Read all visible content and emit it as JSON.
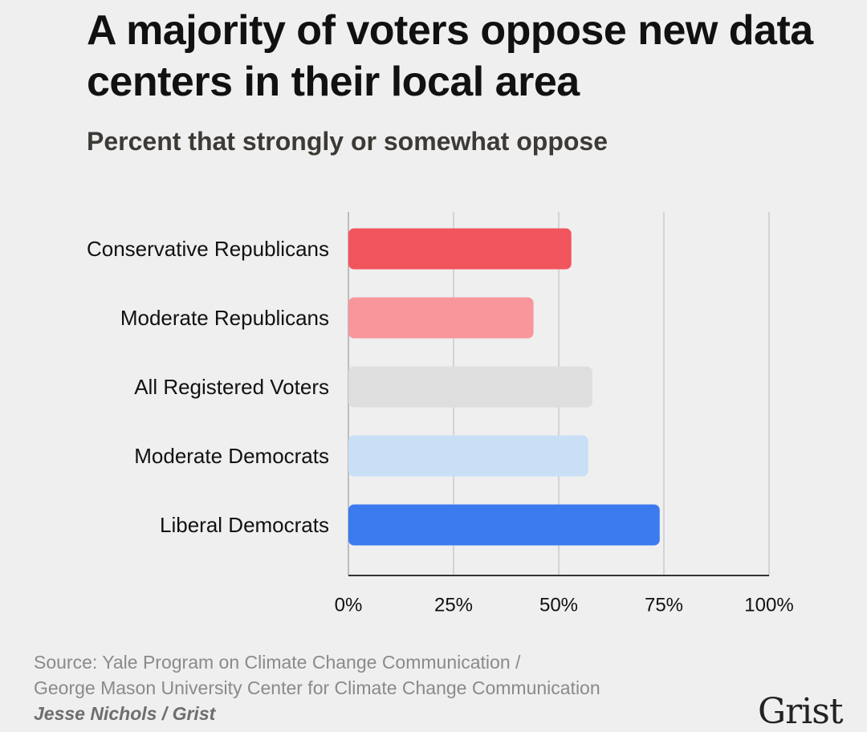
{
  "chart_data": {
    "type": "bar",
    "orientation": "horizontal",
    "title": "A majority of voters oppose new data centers in their local area",
    "subtitle": "Percent that strongly or somewhat oppose",
    "categories": [
      "Conservative Republicans",
      "Moderate Republicans",
      "All Registered Voters",
      "Moderate Democrats",
      "Liberal Democrats"
    ],
    "values": [
      53,
      44,
      58,
      57,
      74
    ],
    "colors": [
      "#f2545e",
      "#f8969c",
      "#dedede",
      "#c8dff6",
      "#3b7aef"
    ],
    "xlim": [
      0,
      100
    ],
    "x_ticks": [
      0,
      25,
      50,
      75,
      100
    ],
    "x_tick_labels": [
      "0%",
      "25%",
      "50%",
      "75%",
      "100%"
    ],
    "grid": true,
    "legend": false
  },
  "footer": {
    "source_line1": "Source: Yale Program on Climate Change Communication /",
    "source_line2": "George Mason University Center for Climate Change Communication",
    "credit": "Jesse Nichols / Grist",
    "logo": "Grist"
  }
}
